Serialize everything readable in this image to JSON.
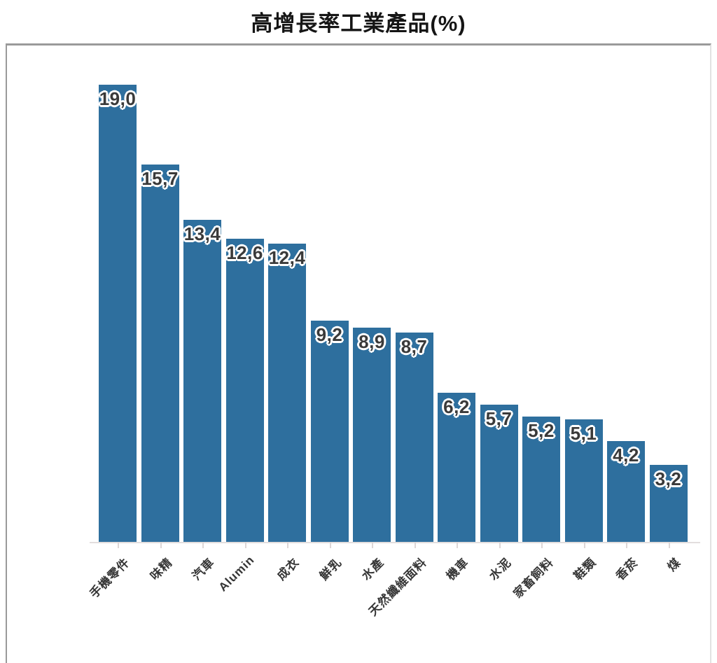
{
  "title": "高增長率工業產品(%)",
  "colors": {
    "bar": "#2e6f9e",
    "value_label": "#3a3a3a",
    "value_label_halo": "#ffffff",
    "frame_border": "#9a9a9a",
    "axis_and_ticks": "#ddd7d7",
    "axis_label_text": "#363636",
    "title_text": "#151515",
    "background": "#ffffff"
  },
  "chart_data": {
    "type": "bar",
    "title": "高增長率工業產品(%)",
    "categories": [
      "手機零件",
      "味精",
      "汽車",
      "Alumin",
      "成衣",
      "鮮乳",
      "水產",
      "天然纖維面料",
      "機車",
      "水泥",
      "家畜飼料",
      "鞋類",
      "香菸",
      "煤"
    ],
    "values": [
      19.0,
      15.7,
      13.4,
      12.6,
      12.4,
      9.2,
      8.9,
      8.7,
      6.2,
      5.7,
      5.2,
      5.1,
      4.2,
      3.2
    ],
    "value_labels": [
      "19,0",
      "15,7",
      "13,4",
      "12,6",
      "12,4",
      "9,2",
      "8,9",
      "8,7",
      "6,2",
      "5,7",
      "5,2",
      "5,1",
      "4,2",
      "3,2"
    ],
    "decimal_separator": ",",
    "xlabel": "",
    "ylabel": "",
    "ylim": [
      0,
      20
    ],
    "yaxis_visible": false,
    "grid": false,
    "legend": false,
    "bar_color": "#2e6f9e",
    "value_label_position": "inside-top",
    "x_tick_rotation_deg": 45
  }
}
